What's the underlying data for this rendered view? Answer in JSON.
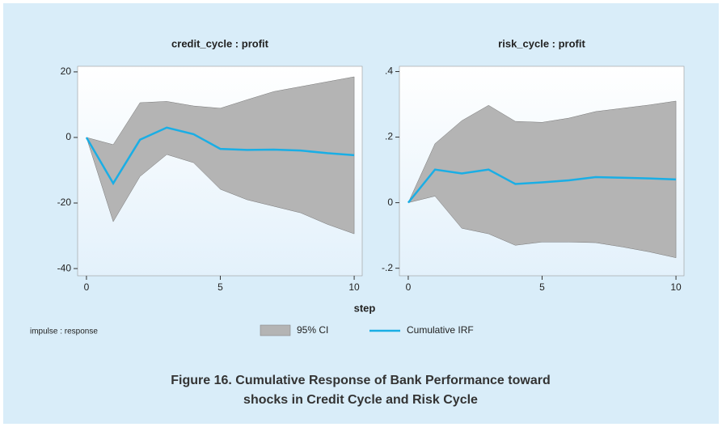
{
  "chart_data": [
    {
      "type": "line",
      "title": "credit_cycle : profit",
      "x": [
        0,
        1,
        2,
        3,
        4,
        5,
        6,
        7,
        8,
        9,
        10
      ],
      "series": [
        {
          "name": "95% CI",
          "color": "#b4b4b4",
          "upper": [
            0,
            -2.2,
            10.6,
            11,
            9.6,
            8.9,
            11.5,
            14,
            15.5,
            17,
            18.5
          ],
          "lower": [
            0,
            -25.7,
            -11.9,
            -5.2,
            -7.7,
            -15.8,
            -19,
            -21,
            -23,
            -26.5,
            -29.4
          ]
        },
        {
          "name": "Cumulative IRF",
          "color": "#1aaee5",
          "values": [
            0,
            -14,
            -0.7,
            3,
            1,
            -3.5,
            -3.8,
            -3.7,
            -4,
            -4.8,
            -5.4
          ]
        }
      ],
      "xlim": [
        -0.33,
        10.3
      ],
      "xticks": [
        0,
        5,
        10
      ],
      "ylim": [
        -42.2,
        21.7
      ],
      "yticks": [
        -40,
        -20,
        0,
        20
      ]
    },
    {
      "type": "line",
      "title": "risk_cycle : profit",
      "x": [
        0,
        1,
        2,
        3,
        4,
        5,
        6,
        7,
        8,
        9,
        10
      ],
      "series": [
        {
          "color": "#b4b4b4",
          "upper": [
            0,
            0.18,
            0.25,
            0.297,
            0.248,
            0.245,
            0.258,
            0.278,
            0.288,
            0.298,
            0.31
          ],
          "lower": [
            0,
            0.02,
            -0.078,
            -0.095,
            -0.13,
            -0.12,
            -0.12,
            -0.122,
            -0.135,
            -0.15,
            -0.168
          ]
        },
        {
          "color": "#1aaee5",
          "values": [
            0,
            0.101,
            0.089,
            0.101,
            0.057,
            0.062,
            0.068,
            0.078,
            0.076,
            0.074,
            0.071
          ]
        }
      ],
      "xlim": [
        -0.33,
        10.3
      ],
      "xticks": [
        0,
        5,
        10
      ],
      "ylim": [
        -0.223,
        0.416
      ],
      "yticks": [
        {
          "value": -0.2,
          "label": "-.2"
        },
        0,
        {
          "value": 0.2,
          "label": ".2"
        },
        {
          "value": 0.4,
          "label": ".4"
        }
      ]
    }
  ],
  "figure": {
    "xlabel": "step",
    "note": "impulse : response",
    "caption": [
      "Figure 16. Cumulative Response of Bank Performance toward",
      "shocks in Credit Cycle and Risk Cycle"
    ]
  }
}
